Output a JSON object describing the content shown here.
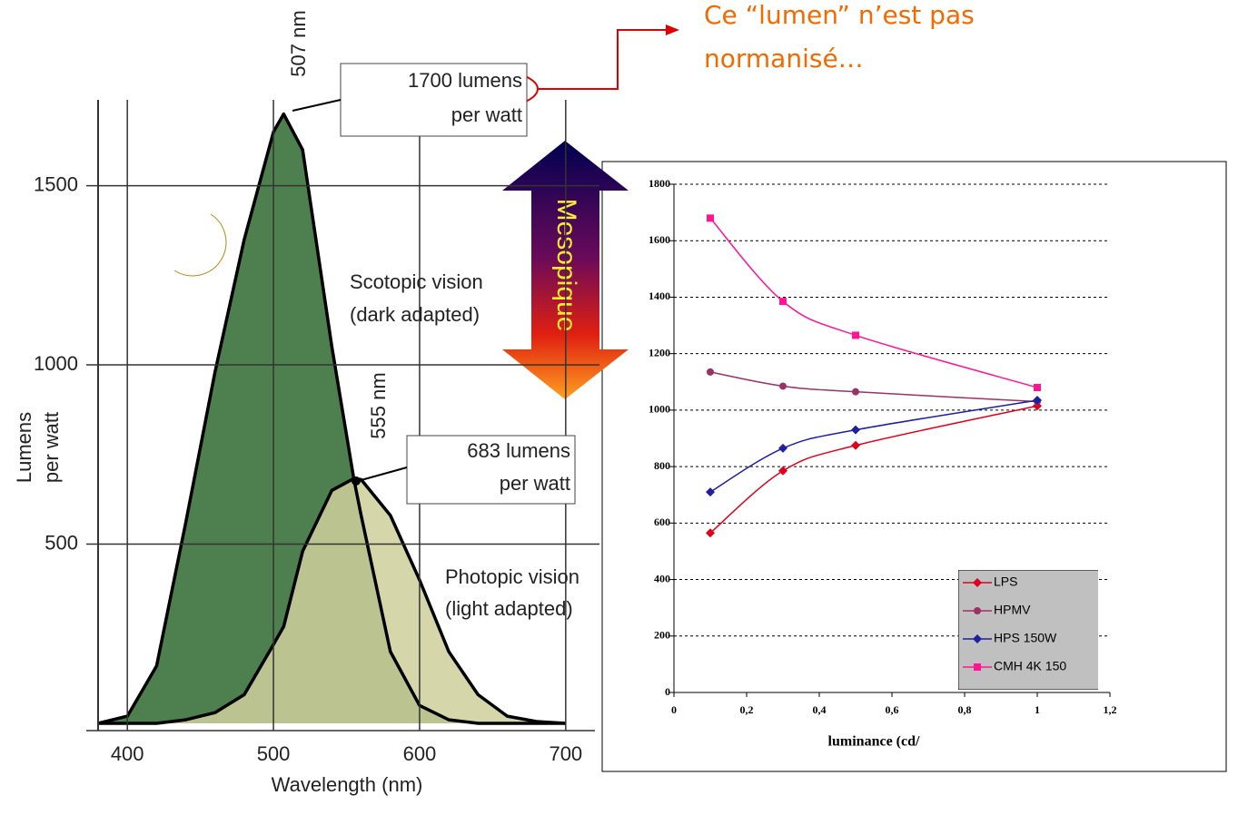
{
  "chart_data": [
    {
      "type": "area",
      "x_label": "Wavelength (nm)",
      "y_label": [
        "Lumens",
        "per watt"
      ],
      "x": [
        380,
        400,
        420,
        440,
        460,
        480,
        500,
        507,
        520,
        540,
        555,
        560,
        580,
        600,
        620,
        640,
        660,
        680,
        700
      ],
      "series": [
        {
          "name": "Scotopic vision",
          "color": "#4e7f4e",
          "values": [
            0,
            20,
            160,
            560,
            980,
            1350,
            1650,
            1700,
            1600,
            1050,
            683,
            580,
            200,
            50,
            10,
            0,
            0,
            0,
            0
          ]
        },
        {
          "name": "Photopic vision",
          "color": "#cfcf9c",
          "values": [
            0,
            0,
            0,
            10,
            30,
            80,
            220,
            270,
            480,
            650,
            683,
            680,
            580,
            400,
            200,
            80,
            20,
            5,
            0
          ]
        }
      ],
      "xlim": [
        380,
        720
      ],
      "xticks": [
        400,
        500,
        600,
        700
      ],
      "ylim": [
        0,
        1780
      ],
      "yticks": [
        500,
        1000,
        1500
      ],
      "grid": true,
      "annotations": {
        "scotopic_peak": "507 nm",
        "scotopic_value": [
          "1700 lumens",
          "per watt"
        ],
        "photopic_peak": "555 nm",
        "photopic_value": [
          "683 lumens",
          "per watt"
        ],
        "scotopic_label": [
          "Scotopic vision",
          "(dark adapted)"
        ],
        "photopic_label": [
          "Photopic vision",
          "(light adapted)"
        ]
      }
    },
    {
      "type": "line",
      "x_label": "luminance (cd/",
      "x": [
        0.1,
        0.3,
        0.5,
        1
      ],
      "series": [
        {
          "name": "LPS",
          "color": "#e0001b",
          "marker": "diamond",
          "values": [
            565,
            785,
            875,
            1015
          ]
        },
        {
          "name": "HPMV",
          "color": "#993366",
          "marker": "circle",
          "values": [
            1135,
            1085,
            1065,
            1030
          ]
        },
        {
          "name": "HPS 150W",
          "color": "#1f1fa0",
          "marker": "diamond",
          "values": [
            710,
            865,
            930,
            1035
          ]
        },
        {
          "name": "CMH 4K 150",
          "color": "#ff1493",
          "marker": "square",
          "values": [
            1680,
            1385,
            1265,
            1080
          ]
        }
      ],
      "xlim": [
        0,
        1.2
      ],
      "xticks": [
        0,
        {
          "value": 0.2,
          "label": "0,2"
        },
        {
          "value": 0.4,
          "label": "0,4"
        },
        {
          "value": 0.6,
          "label": "0,6"
        },
        {
          "value": 0.8,
          "label": "0,8"
        },
        1,
        {
          "value": 1.2,
          "label": "1,2"
        }
      ],
      "ylim": [
        0,
        1800
      ],
      "yticks": [
        0,
        200,
        400,
        600,
        800,
        1000,
        1200,
        1400,
        1600,
        1800
      ],
      "grid": true,
      "legend": "lower right"
    }
  ],
  "annotations": {
    "mesopic": "Mesopique",
    "note": [
      "Ce “lumen” n’est pas",
      "normanisé…"
    ]
  }
}
